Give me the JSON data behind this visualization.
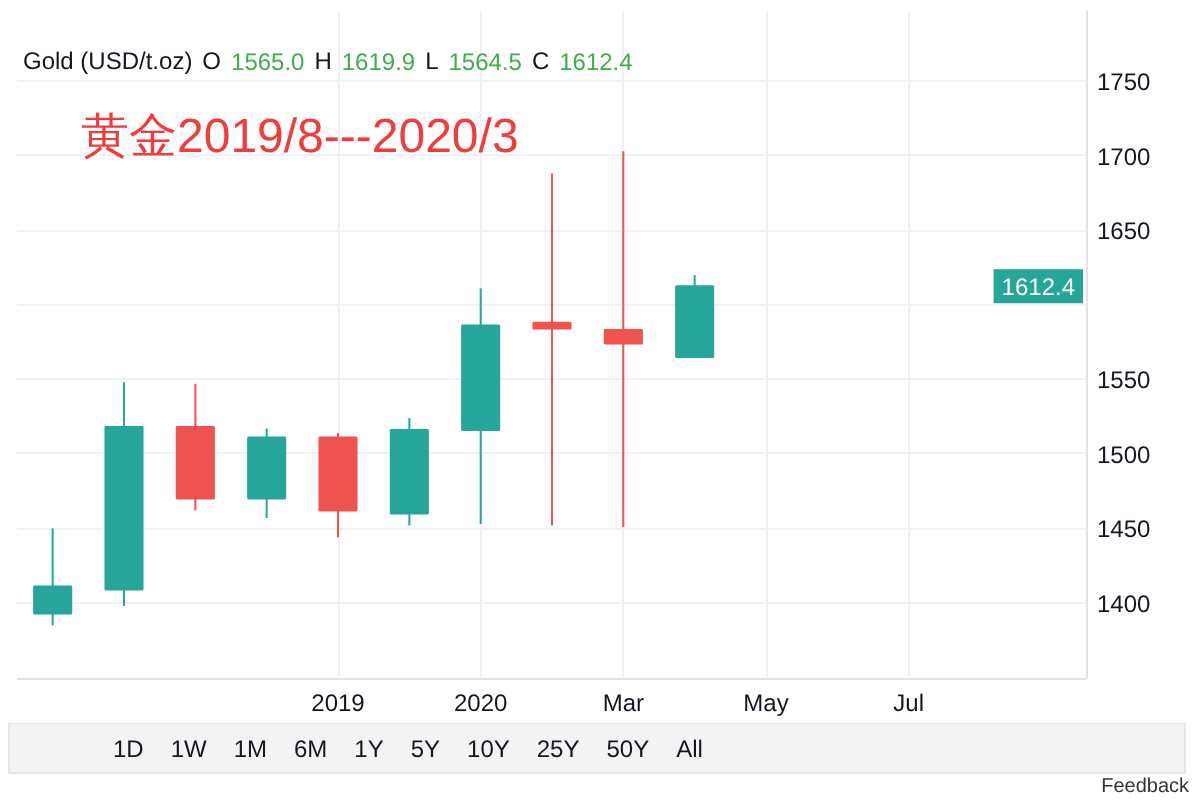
{
  "chart_data": {
    "type": "candlestick",
    "title": "Gold (USD/t.oz)",
    "categories": [
      null,
      null,
      null,
      null,
      "2019",
      null,
      "2020",
      null,
      "Mar",
      null,
      "May",
      null,
      "Jul",
      null,
      null
    ],
    "ohlc": [
      [
        1393,
        1450,
        1385,
        1411
      ],
      [
        1409,
        1548,
        1398,
        1518
      ],
      [
        1518,
        1547,
        1462,
        1470
      ],
      [
        1470,
        1517,
        1457,
        1511
      ],
      [
        1511,
        1514,
        1444,
        1462
      ],
      [
        1460,
        1524,
        1452,
        1516
      ],
      [
        1516,
        1611,
        1453,
        1586
      ],
      [
        1588,
        1688,
        1452,
        1584
      ],
      [
        1583,
        1703,
        1451,
        1574
      ],
      [
        1565.0,
        1619.9,
        1564.5,
        1612.4
      ],
      null,
      null,
      null,
      null,
      null
    ],
    "colors": [
      "#26a69a",
      "#26a69a",
      "#ef5350",
      "#26a69a",
      "#ef5350",
      "#26a69a",
      "#26a69a",
      "#ef5350",
      "#ef5350",
      "#26a69a",
      null,
      null,
      null,
      null,
      null
    ],
    "ylim": [
      1349,
      1797
    ],
    "yticks": [
      1400,
      1450,
      1500,
      1550,
      {
        "value": 1600,
        "label": null
      },
      1650,
      1700,
      1750
    ],
    "grid": true,
    "annotations": [
      "O 1565.0 H 1619.9 L 1564.5 C 1612.4",
      "黄金2019/8---2020/3",
      "1612.4",
      "1D 1W 1M 6M 1Y 5Y 10Y 25Y 50Y All",
      "Feedback"
    ]
  }
}
